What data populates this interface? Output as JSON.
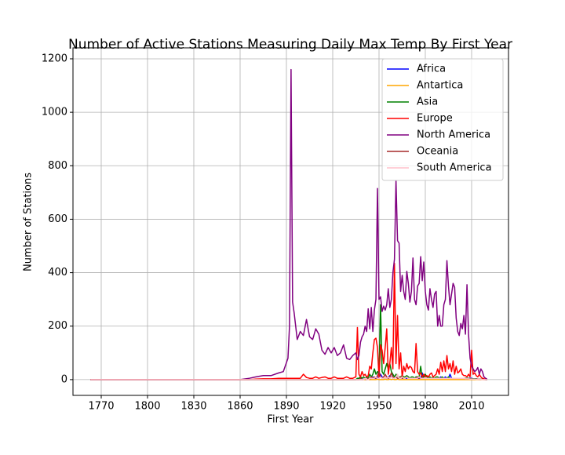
{
  "chart_data": {
    "type": "line",
    "title": "Number of Active Stations Measuring Daily Max Temp By First Year",
    "x_label": "First Year",
    "y_label": "Number of Stations",
    "xlim": [
      1751.7,
      2033.9
    ],
    "ylim": [
      -59,
      1241
    ],
    "xticks": [
      1770,
      1800,
      1830,
      1860,
      1890,
      1920,
      1950,
      1980,
      2010
    ],
    "yticks": [
      0,
      200,
      400,
      600,
      800,
      1000,
      1200
    ],
    "grid": true,
    "legend": "upper right",
    "x": [
      1763,
      1860,
      1866,
      1870,
      1875,
      1880,
      1885,
      1888,
      1891,
      1892,
      1893,
      1894,
      1895,
      1897,
      1899,
      1901,
      1903,
      1905,
      1907,
      1909,
      1911,
      1913,
      1915,
      1917,
      1919,
      1921,
      1923,
      1925,
      1927,
      1929,
      1931,
      1933,
      1935,
      1936,
      1937,
      1938,
      1939,
      1940,
      1941,
      1942,
      1943,
      1944,
      1945,
      1946,
      1947,
      1948,
      1949,
      1950,
      1951,
      1952,
      1953,
      1954,
      1955,
      1956,
      1957,
      1958,
      1959,
      1960,
      1961,
      1962,
      1963,
      1964,
      1965,
      1966,
      1967,
      1968,
      1969,
      1970,
      1971,
      1972,
      1973,
      1974,
      1975,
      1976,
      1977,
      1978,
      1979,
      1980,
      1981,
      1982,
      1983,
      1984,
      1985,
      1986,
      1987,
      1988,
      1989,
      1990,
      1991,
      1992,
      1993,
      1994,
      1995,
      1996,
      1997,
      1998,
      1999,
      2000,
      2001,
      2002,
      2003,
      2004,
      2005,
      2006,
      2007,
      2008,
      2009,
      2010,
      2011,
      2012,
      2013,
      2014,
      2015,
      2016,
      2017,
      2018,
      2019,
      2020
    ],
    "series": [
      {
        "name": "Africa",
        "color": "#0000ff",
        "values": [
          0,
          0,
          0,
          0,
          0,
          0,
          0,
          0,
          0,
          0,
          0,
          0,
          0,
          0,
          0,
          0,
          0,
          0,
          0,
          0,
          0,
          0,
          0,
          0,
          0,
          0,
          0,
          0,
          0,
          0,
          0,
          0,
          0,
          0,
          0,
          0,
          0,
          2,
          0,
          0,
          5,
          0,
          5,
          10,
          5,
          5,
          10,
          5,
          20,
          10,
          5,
          10,
          5,
          10,
          15,
          10,
          5,
          5,
          10,
          5,
          5,
          10,
          5,
          5,
          5,
          5,
          10,
          5,
          5,
          5,
          5,
          10,
          5,
          5,
          5,
          25,
          5,
          5,
          5,
          10,
          5,
          5,
          5,
          5,
          5,
          5,
          5,
          10,
          5,
          5,
          10,
          5,
          5,
          20,
          5,
          5,
          5,
          5,
          5,
          5,
          5,
          5,
          5,
          5,
          5,
          5,
          5,
          5,
          3,
          3,
          3,
          2,
          2,
          2,
          1,
          1,
          0,
          0
        ]
      },
      {
        "name": "Antartica",
        "color": "#ffa500",
        "values": [
          0,
          0,
          0,
          0,
          0,
          0,
          0,
          0,
          0,
          0,
          0,
          0,
          0,
          0,
          0,
          0,
          0,
          0,
          0,
          0,
          0,
          0,
          0,
          0,
          0,
          0,
          0,
          0,
          0,
          0,
          0,
          0,
          0,
          0,
          0,
          0,
          0,
          0,
          0,
          0,
          0,
          0,
          0,
          0,
          0,
          0,
          2,
          0,
          0,
          0,
          0,
          2,
          0,
          0,
          2,
          0,
          2,
          0,
          0,
          2,
          0,
          0,
          0,
          0,
          0,
          0,
          0,
          0,
          0,
          0,
          0,
          0,
          0,
          0,
          0,
          0,
          0,
          0,
          0,
          0,
          0,
          0,
          0,
          0,
          0,
          0,
          0,
          0,
          0,
          0,
          0,
          0,
          0,
          0,
          0,
          0,
          0,
          0,
          0,
          0,
          0,
          0,
          0,
          0,
          0,
          0,
          0,
          0,
          0,
          0,
          0,
          0,
          0,
          0,
          0,
          0,
          0,
          0
        ]
      },
      {
        "name": "Asia",
        "color": "#008000",
        "values": [
          0,
          0,
          0,
          0,
          0,
          0,
          0,
          0,
          0,
          0,
          0,
          0,
          0,
          0,
          0,
          0,
          0,
          0,
          0,
          0,
          0,
          0,
          0,
          0,
          0,
          0,
          0,
          0,
          0,
          0,
          0,
          0,
          0,
          5,
          5,
          10,
          5,
          10,
          5,
          10,
          5,
          20,
          10,
          20,
          40,
          20,
          30,
          20,
          280,
          30,
          20,
          40,
          60,
          40,
          60,
          30,
          20,
          10,
          20,
          15,
          10,
          10,
          15,
          10,
          10,
          15,
          10,
          5,
          10,
          10,
          5,
          10,
          10,
          10,
          50,
          5,
          10,
          20,
          10,
          5,
          10,
          5,
          10,
          5,
          10,
          10,
          5,
          5,
          10,
          5,
          5,
          5,
          10,
          5,
          5,
          5,
          5,
          5,
          5,
          5,
          5,
          5,
          5,
          5,
          5,
          5,
          3,
          3,
          3,
          3,
          3,
          2,
          2,
          2,
          1,
          1,
          0,
          0
        ]
      },
      {
        "name": "Europe",
        "color": "#ff0000",
        "values": [
          0,
          0,
          0,
          2,
          3,
          3,
          5,
          5,
          5,
          5,
          5,
          5,
          5,
          5,
          5,
          20,
          8,
          5,
          5,
          10,
          5,
          8,
          10,
          5,
          5,
          10,
          5,
          5,
          5,
          10,
          5,
          5,
          10,
          195,
          20,
          10,
          30,
          15,
          20,
          10,
          15,
          50,
          40,
          100,
          150,
          155,
          120,
          5,
          130,
          110,
          60,
          120,
          190,
          20,
          60,
          120,
          40,
          435,
          60,
          240,
          40,
          100,
          10,
          50,
          30,
          60,
          40,
          50,
          45,
          30,
          25,
          135,
          30,
          20,
          25,
          10,
          20,
          10,
          15,
          10,
          20,
          25,
          10,
          15,
          20,
          40,
          20,
          65,
          30,
          70,
          30,
          90,
          40,
          60,
          30,
          70,
          20,
          50,
          25,
          30,
          40,
          20,
          15,
          15,
          10,
          20,
          10,
          110,
          20,
          25,
          15,
          10,
          20,
          10,
          5,
          3,
          1,
          0
        ]
      },
      {
        "name": "North America",
        "color": "#800080",
        "values": [
          0,
          0,
          5,
          10,
          15,
          15,
          25,
          30,
          80,
          200,
          1160,
          290,
          250,
          150,
          180,
          165,
          225,
          160,
          150,
          190,
          170,
          110,
          95,
          120,
          100,
          120,
          90,
          100,
          130,
          80,
          75,
          90,
          100,
          75,
          90,
          140,
          160,
          170,
          200,
          180,
          265,
          190,
          270,
          180,
          260,
          300,
          715,
          300,
          310,
          255,
          275,
          260,
          280,
          340,
          270,
          300,
          400,
          450,
          745,
          520,
          510,
          330,
          390,
          330,
          300,
          405,
          360,
          290,
          330,
          455,
          300,
          280,
          350,
          360,
          460,
          370,
          440,
          330,
          280,
          260,
          340,
          300,
          270,
          320,
          330,
          200,
          240,
          200,
          200,
          280,
          300,
          445,
          350,
          280,
          320,
          360,
          345,
          230,
          180,
          165,
          210,
          190,
          240,
          170,
          355,
          170,
          80,
          50,
          40,
          30,
          35,
          45,
          20,
          40,
          30,
          10,
          5,
          2
        ]
      },
      {
        "name": "Oceania",
        "color": "#a52a2a",
        "values": [
          0,
          0,
          0,
          0,
          0,
          0,
          0,
          0,
          0,
          0,
          0,
          0,
          0,
          0,
          0,
          0,
          0,
          0,
          0,
          0,
          0,
          0,
          0,
          0,
          0,
          0,
          0,
          0,
          0,
          0,
          0,
          0,
          0,
          0,
          0,
          5,
          0,
          0,
          5,
          0,
          5,
          5,
          10,
          5,
          10,
          5,
          15,
          30,
          10,
          5,
          10,
          20,
          10,
          5,
          10,
          25,
          10,
          5,
          10,
          5,
          5,
          10,
          5,
          5,
          5,
          10,
          5,
          5,
          5,
          5,
          5,
          5,
          10,
          5,
          5,
          5,
          5,
          5,
          5,
          5,
          5,
          5,
          5,
          5,
          5,
          5,
          5,
          5,
          5,
          5,
          5,
          5,
          5,
          5,
          5,
          5,
          5,
          5,
          5,
          5,
          5,
          5,
          5,
          3,
          3,
          3,
          3,
          3,
          2,
          2,
          2,
          2,
          1,
          1,
          1,
          0,
          0,
          0
        ]
      },
      {
        "name": "South America",
        "color": "#ffc0cb",
        "values": [
          0,
          0,
          0,
          0,
          0,
          0,
          0,
          0,
          0,
          0,
          0,
          0,
          0,
          0,
          0,
          0,
          0,
          0,
          0,
          0,
          0,
          0,
          0,
          0,
          0,
          0,
          0,
          0,
          0,
          0,
          0,
          0,
          0,
          0,
          0,
          0,
          0,
          0,
          5,
          0,
          0,
          5,
          5,
          5,
          5,
          10,
          5,
          5,
          10,
          5,
          5,
          10,
          5,
          10,
          5,
          10,
          5,
          5,
          10,
          20,
          5,
          5,
          10,
          5,
          5,
          10,
          5,
          5,
          5,
          5,
          5,
          5,
          5,
          10,
          5,
          5,
          5,
          5,
          5,
          5,
          5,
          5,
          5,
          5,
          5,
          5,
          5,
          5,
          5,
          5,
          5,
          5,
          5,
          5,
          5,
          5,
          5,
          5,
          5,
          5,
          5,
          5,
          5,
          3,
          3,
          3,
          2,
          2,
          2,
          2,
          1,
          1,
          1,
          1,
          0,
          0,
          0,
          0
        ]
      }
    ]
  }
}
